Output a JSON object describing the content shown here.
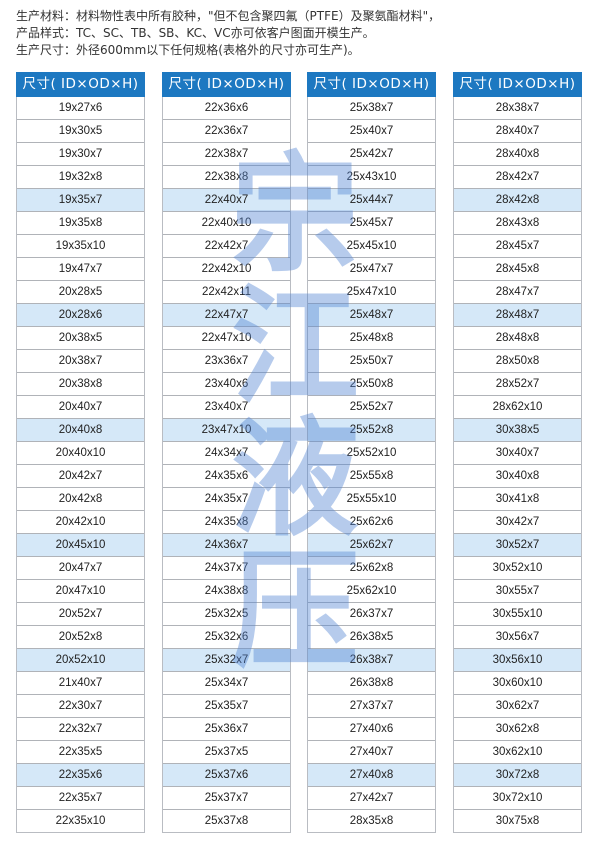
{
  "intro": {
    "line1": "生产材料：材料物性表中所有胶种，\"但不包含聚四氟（PTFE）及聚氨酯材料\"，",
    "line2": "产品样式：TC、SC、TB、SB、KC、VC亦可依客户图面开模生产。",
    "line3": "生产尺寸：外径600mm以下任何规格(表格外的尺寸亦可生产)。"
  },
  "watermark": "宗江液压",
  "colors": {
    "header": "#1d78c1",
    "highlight_row": "#d5e8f8"
  },
  "tables": [
    {
      "header": "尺寸( ID×OD×H)",
      "rows": [
        "19x27x6",
        "19x30x5",
        "19x30x7",
        "19x32x8",
        "19x35x7",
        "19x35x8",
        "19x35x10",
        "19x47x7",
        "20x28x5",
        "20x28x6",
        "20x38x5",
        "20x38x7",
        "20x38x8",
        "20x40x7",
        "20x40x8",
        "20x40x10",
        "20x42x7",
        "20x42x8",
        "20x42x10",
        "20x45x10",
        "20x47x7",
        "20x47x10",
        "20x52x7",
        "20x52x8",
        "20x52x10",
        "21x40x7",
        "22x30x7",
        "22x32x7",
        "22x35x5",
        "22x35x6",
        "22x35x7",
        "22x35x10"
      ]
    },
    {
      "header": "尺寸( ID×OD×H)",
      "rows": [
        "22x36x6",
        "22x36x7",
        "22x38x7",
        "22x38x8",
        "22x40x7",
        "22x40x10",
        "22x42x7",
        "22x42x10",
        "22x42x11",
        "22x47x7",
        "22x47x10",
        "23x36x7",
        "23x40x6",
        "23x40x7",
        "23x47x10",
        "24x34x7",
        "24x35x6",
        "24x35x7",
        "24x35x8",
        "24x36x7",
        "24x37x7",
        "24x38x8",
        "25x32x5",
        "25x32x6",
        "25x32x7",
        "25x34x7",
        "25x35x7",
        "25x36x7",
        "25x37x5",
        "25x37x6",
        "25x37x7",
        "25x37x8"
      ]
    },
    {
      "header": "尺寸( ID×OD×H)",
      "rows": [
        "25x38x7",
        "25x40x7",
        "25x42x7",
        "25x43x10",
        "25x44x7",
        "25x45x7",
        "25x45x10",
        "25x47x7",
        "25x47x10",
        "25x48x7",
        "25x48x8",
        "25x50x7",
        "25x50x8",
        "25x52x7",
        "25x52x8",
        "25x52x10",
        "25x55x8",
        "25x55x10",
        "25x62x6",
        "25x62x7",
        "25x62x8",
        "25x62x10",
        "26x37x7",
        "26x38x5",
        "26x38x7",
        "26x38x8",
        "27x37x7",
        "27x40x6",
        "27x40x7",
        "27x40x8",
        "27x42x7",
        "28x35x8"
      ]
    },
    {
      "header": "尺寸( ID×OD×H)",
      "rows": [
        "28x38x7",
        "28x40x7",
        "28x40x8",
        "28x42x7",
        "28x42x8",
        "28x43x8",
        "28x45x7",
        "28x45x8",
        "28x47x7",
        "28x48x7",
        "28x48x8",
        "28x50x8",
        "28x52x7",
        "28x62x10",
        "30x38x5",
        "30x40x7",
        "30x40x8",
        "30x41x8",
        "30x42x7",
        "30x52x7",
        "30x52x10",
        "30x55x7",
        "30x55x10",
        "30x56x7",
        "30x56x10",
        "30x60x10",
        "30x62x7",
        "30x62x8",
        "30x62x10",
        "30x72x8",
        "30x72x10",
        "30x75x8"
      ]
    }
  ]
}
